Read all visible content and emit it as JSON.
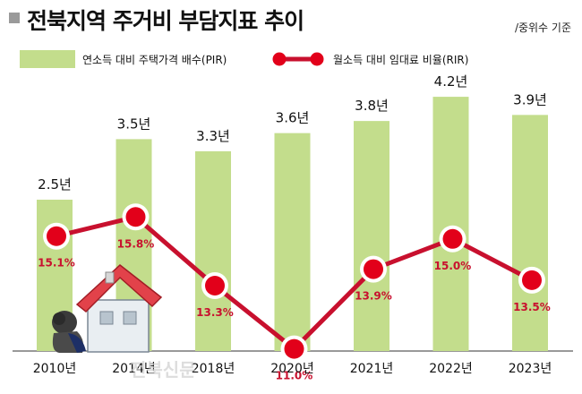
{
  "title": "전북지역 주거비 부담지표 추이",
  "note": "/중위수 기준",
  "colors": {
    "bar": "#c3dd8c",
    "line": "#c8102e",
    "marker_fill": "#e2001a",
    "marker_ring": "#ffffff"
  },
  "watermark": "전북신문",
  "chart_data": {
    "type": "bar",
    "categories": [
      "2010년",
      "2014년",
      "2018년",
      "2020년",
      "2021년",
      "2022년",
      "2023년"
    ],
    "series": [
      {
        "name": "연소득 대비 주택가격 배수(PIR)",
        "type": "bar",
        "values": [
          2.5,
          3.5,
          3.3,
          3.6,
          3.8,
          4.2,
          3.9
        ],
        "labels": [
          "2.5년",
          "3.5년",
          "3.3년",
          "3.6년",
          "3.8년",
          "4.2년",
          "3.9년"
        ]
      },
      {
        "name": "월소득 대비 임대료 비율(RIR)",
        "type": "line",
        "values": [
          15.1,
          15.8,
          13.3,
          11.0,
          13.9,
          15.0,
          13.5
        ],
        "labels": [
          "15.1%",
          "15.8%",
          "13.3%",
          "11.0%",
          "13.9%",
          "15.0%",
          "13.5%"
        ]
      }
    ],
    "legend_position": "top",
    "grid": false
  }
}
